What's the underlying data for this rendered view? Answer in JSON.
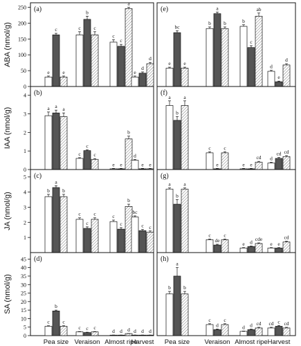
{
  "chart_data": {
    "type": "bar",
    "categories": [
      "Pea size",
      "Veraison",
      "Almost ripe",
      "Harvest"
    ],
    "series_styles": [
      {
        "fill": "#ffffff",
        "pattern": "none"
      },
      {
        "fill": "#555555",
        "pattern": "none"
      },
      {
        "fill": "#ffffff",
        "pattern": "hatch"
      }
    ],
    "rows": [
      {
        "ylabel": "ABA (nmol/g)",
        "ylim": [
          0,
          260
        ],
        "yticks": [
          0,
          50,
          100,
          150,
          200,
          250
        ]
      },
      {
        "ylabel": "IAA (nmol/g)",
        "ylim": [
          0,
          4.4
        ],
        "yticks": [
          0,
          1,
          2,
          3,
          4
        ]
      },
      {
        "ylabel": "JA (nmol/g)",
        "ylim": [
          0,
          5.4
        ],
        "yticks": [
          1,
          2,
          3,
          4,
          5
        ]
      },
      {
        "ylabel": "SA (nmol/g)",
        "ylim": [
          0,
          48
        ],
        "yticks": [
          0,
          5,
          10,
          15,
          20,
          25,
          30,
          35,
          40,
          45
        ]
      }
    ],
    "panels": [
      {
        "label": "(a)",
        "row": 0,
        "col": 0,
        "values": [
          [
            30,
            163,
            30
          ],
          [
            163,
            212,
            163
          ],
          [
            140,
            127,
            246
          ],
          [
            30,
            42,
            72
          ]
        ],
        "errors": [
          [
            3,
            5,
            3
          ],
          [
            10,
            10,
            10
          ],
          [
            8,
            6,
            4
          ],
          [
            3,
            4,
            4
          ]
        ],
        "letters": [
          [
            "e",
            "c",
            "e"
          ],
          [
            "c",
            "b",
            "c"
          ],
          [
            "c",
            "c",
            "a"
          ],
          [
            "e",
            "d",
            "d"
          ]
        ]
      },
      {
        "label": "(e)",
        "row": 0,
        "col": 1,
        "values": [
          [
            58,
            170,
            58
          ],
          [
            183,
            230,
            183
          ],
          [
            190,
            123,
            222
          ],
          [
            48,
            15,
            68
          ]
        ],
        "errors": [
          [
            3,
            6,
            3
          ],
          [
            5,
            5,
            5
          ],
          [
            5,
            6,
            10
          ],
          [
            3,
            2,
            4
          ]
        ],
        "letters": [
          [
            "e",
            "bc",
            "e"
          ],
          [
            "b",
            "a",
            "b"
          ],
          [
            "b",
            "c",
            "ab"
          ],
          [
            "d",
            "e",
            "d"
          ]
        ]
      },
      {
        "label": "(b)",
        "row": 1,
        "col": 0,
        "values": [
          [
            2.9,
            3.05,
            2.85
          ],
          [
            0.6,
            1.02,
            0.55
          ],
          [
            0.04,
            0.04,
            1.65
          ],
          [
            0.5,
            0.04,
            0.04
          ]
        ],
        "errors": [
          [
            0.2,
            0.15,
            0.2
          ],
          [
            0.04,
            0.04,
            0.04
          ],
          [
            0.02,
            0.02,
            0.15
          ],
          [
            0.04,
            0.02,
            0.02
          ]
        ],
        "letters": [
          [
            "a",
            "a",
            "a"
          ],
          [
            "c",
            "c",
            "c"
          ],
          [
            "e",
            "e",
            "b"
          ],
          [
            "d",
            "e",
            "e"
          ]
        ]
      },
      {
        "label": "(f)",
        "row": 1,
        "col": 1,
        "values": [
          [
            3.45,
            2.65,
            3.45
          ],
          [
            0.9,
            0.04,
            0.9
          ],
          [
            0.04,
            0.04,
            0.4
          ],
          [
            0.35,
            0.6,
            0.7
          ]
        ],
        "errors": [
          [
            0.25,
            0.2,
            0.25
          ],
          [
            0.06,
            0.02,
            0.06
          ],
          [
            0.02,
            0.02,
            0.04
          ],
          [
            0.04,
            0.05,
            0.05
          ]
        ],
        "letters": [
          [
            "a",
            "b",
            "a"
          ],
          [
            "c",
            "e",
            "c"
          ],
          [
            "e",
            "e",
            "cd"
          ],
          [
            "d",
            "cd",
            "cd"
          ]
        ]
      },
      {
        "label": "(c)",
        "row": 2,
        "col": 0,
        "values": [
          [
            3.7,
            4.3,
            3.7
          ],
          [
            2.2,
            1.6,
            2.2
          ],
          [
            2.05,
            1.55,
            3.05
          ],
          [
            2.35,
            1.45,
            1.35
          ]
        ],
        "errors": [
          [
            0.15,
            0.12,
            0.15
          ],
          [
            0.1,
            0.1,
            0.1
          ],
          [
            0.1,
            0.1,
            0.15
          ],
          [
            0.08,
            0.08,
            0.08
          ]
        ],
        "letters": [
          [
            "b",
            "a",
            "b"
          ],
          [
            "c",
            "c",
            "c"
          ],
          [
            "c",
            "c",
            "b"
          ],
          [
            "bc",
            "c",
            "c"
          ]
        ]
      },
      {
        "label": "(g)",
        "row": 2,
        "col": 1,
        "values": [
          [
            4.2,
            3.2,
            4.2
          ],
          [
            0.85,
            0.5,
            0.85
          ],
          [
            0.3,
            0.4,
            0.6
          ],
          [
            0.3,
            0.3,
            0.7
          ]
        ],
        "errors": [
          [
            0.08,
            0.3,
            0.08
          ],
          [
            0.05,
            0.05,
            0.05
          ],
          [
            0.03,
            0.03,
            0.04
          ],
          [
            0.03,
            0.03,
            0.05
          ]
        ],
        "letters": [
          [
            "a",
            "b",
            "a"
          ],
          [
            "c",
            "de",
            "c"
          ],
          [
            "e",
            "d",
            "cde"
          ],
          [
            "e",
            "e",
            "cd"
          ]
        ]
      },
      {
        "label": "(d)",
        "row": 3,
        "col": 0,
        "values": [
          [
            5.5,
            14.5,
            5.5
          ],
          [
            2.2,
            1.8,
            2.2
          ],
          [
            0.3,
            0.3,
            1.2
          ],
          [
            0.3,
            0.3,
            0.3
          ]
        ],
        "errors": [
          [
            0.3,
            0.5,
            0.3
          ],
          [
            0.2,
            0.2,
            0.2
          ],
          [
            0.05,
            0.05,
            0.1
          ],
          [
            0.05,
            0.05,
            0.05
          ]
        ],
        "letters": [
          [
            "c",
            "b",
            "c"
          ],
          [
            "c",
            "c",
            "c"
          ],
          [
            "d",
            "d",
            "d"
          ],
          [
            "d",
            "d",
            "d"
          ]
        ]
      },
      {
        "label": "(h)",
        "row": 3,
        "col": 1,
        "values": [
          [
            24.5,
            35,
            24.5
          ],
          [
            6.5,
            3.5,
            6.5
          ],
          [
            2.5,
            3.5,
            4.5
          ],
          [
            4.5,
            5.5,
            4.5
          ]
        ],
        "errors": [
          [
            1.5,
            5,
            1.5
          ],
          [
            0.5,
            0.4,
            0.5
          ],
          [
            0.2,
            0.3,
            0.4
          ],
          [
            0.4,
            0.5,
            0.4
          ]
        ],
        "letters": [
          [
            "b",
            "a",
            "b"
          ],
          [
            "c",
            "d",
            "c"
          ],
          [
            "d",
            "d",
            "cd"
          ],
          [
            "cd",
            "c",
            "cd"
          ]
        ]
      }
    ]
  }
}
